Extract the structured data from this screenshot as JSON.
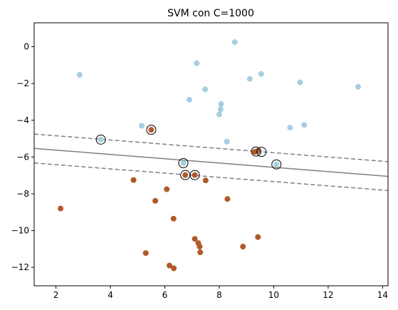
{
  "chart_data": {
    "type": "scatter",
    "title": "SVM con C=1000",
    "xlabel": "",
    "ylabel": "",
    "xlim": [
      1.2,
      14.2
    ],
    "ylim": [
      -13.0,
      1.3
    ],
    "xticks": [
      2,
      4,
      6,
      8,
      10,
      12,
      14
    ],
    "yticks": [
      0,
      -2,
      -4,
      -6,
      -8,
      -10,
      -12
    ],
    "grid": false,
    "colors": {
      "class_0": "#a6cee3",
      "class_1": "#b15928",
      "decision_line": "#808080",
      "support_ring": "#000000"
    },
    "series": [
      {
        "class": 0,
        "points": [
          [
            2.87,
            -1.53
          ],
          [
            3.65,
            -5.05
          ],
          [
            5.15,
            -4.3
          ],
          [
            6.9,
            -2.88
          ],
          [
            7.17,
            -0.9
          ],
          [
            7.48,
            -2.32
          ],
          [
            8.0,
            -3.68
          ],
          [
            8.05,
            -3.4
          ],
          [
            8.07,
            -3.12
          ],
          [
            8.28,
            -5.16
          ],
          [
            8.57,
            0.25
          ],
          [
            9.12,
            -1.75
          ],
          [
            9.54,
            -1.48
          ],
          [
            9.48,
            -5.7
          ],
          [
            10.1,
            -6.4
          ],
          [
            10.6,
            -4.4
          ],
          [
            10.97,
            -1.94
          ],
          [
            11.12,
            -4.25
          ],
          [
            13.1,
            -2.18
          ],
          [
            6.68,
            -6.33
          ]
        ]
      },
      {
        "class": 1,
        "points": [
          [
            2.17,
            -8.8
          ],
          [
            4.85,
            -7.25
          ],
          [
            5.3,
            -11.22
          ],
          [
            5.5,
            -4.52
          ],
          [
            5.65,
            -8.38
          ],
          [
            6.07,
            -7.75
          ],
          [
            6.17,
            -11.9
          ],
          [
            6.32,
            -9.35
          ],
          [
            6.33,
            -12.05
          ],
          [
            6.75,
            -6.98
          ],
          [
            7.1,
            -6.98
          ],
          [
            7.1,
            -10.45
          ],
          [
            7.23,
            -10.68
          ],
          [
            7.28,
            -10.87
          ],
          [
            7.3,
            -11.18
          ],
          [
            7.5,
            -7.27
          ],
          [
            8.3,
            -8.28
          ],
          [
            8.87,
            -10.87
          ],
          [
            9.3,
            -5.72
          ],
          [
            9.4,
            -5.67
          ],
          [
            9.42,
            -10.35
          ]
        ]
      }
    ],
    "support_vectors": [
      [
        3.65,
        -5.05
      ],
      [
        5.5,
        -4.52
      ],
      [
        6.68,
        -6.33
      ],
      [
        6.75,
        -6.98
      ],
      [
        7.1,
        -6.98
      ],
      [
        9.35,
        -5.7
      ],
      [
        9.55,
        -5.72
      ],
      [
        10.1,
        -6.4
      ]
    ],
    "decision_boundary": {
      "x": [
        1.2,
        14.2
      ],
      "center": [
        -5.53,
        -7.05
      ],
      "margin_upper": [
        -4.75,
        -6.25
      ],
      "margin_lower": [
        -6.32,
        -7.82
      ]
    }
  }
}
